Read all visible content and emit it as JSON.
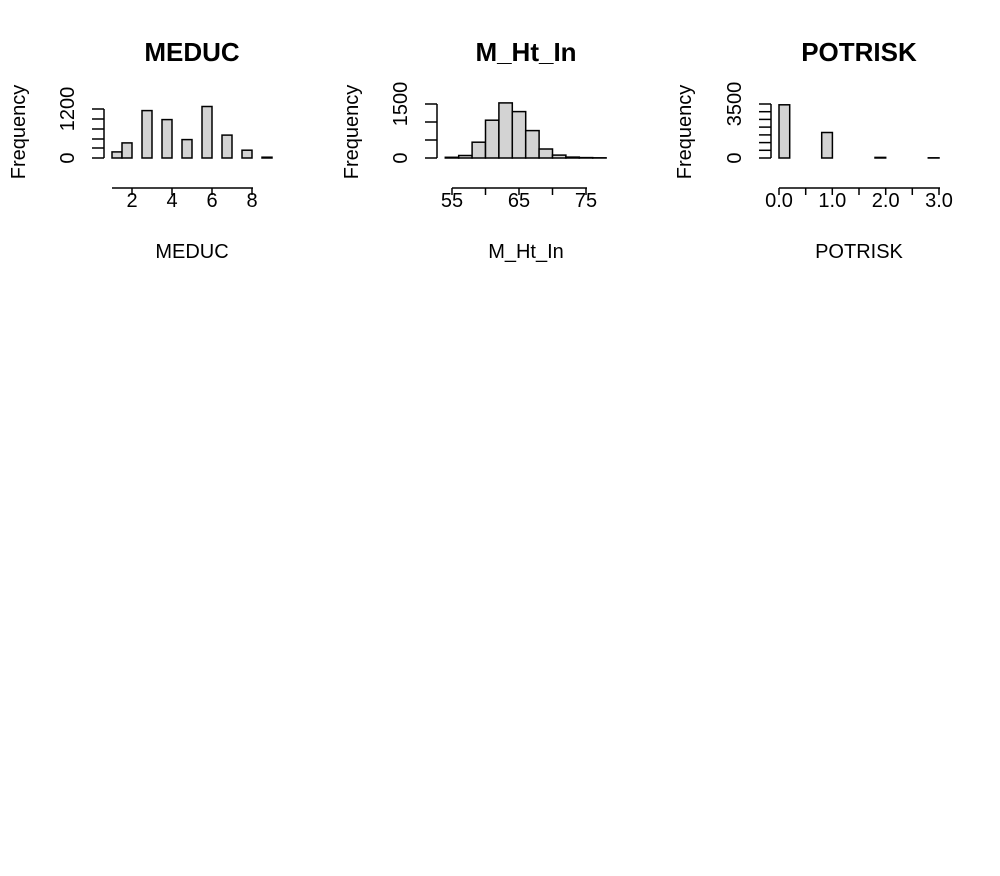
{
  "chart_data": [
    {
      "type": "bar",
      "title": "MEDUC",
      "xlabel": "MEDUC",
      "ylabel": "Frequency",
      "x_ticks": [
        "2",
        "4",
        "6",
        "8"
      ],
      "y_ticks": [
        "0",
        "1200"
      ],
      "bins": [
        [
          1.0,
          1.5
        ],
        [
          1.5,
          2.0
        ],
        [
          2.0,
          2.5
        ],
        [
          2.5,
          3.0
        ],
        [
          3.0,
          3.5
        ],
        [
          3.5,
          4.0
        ],
        [
          4.0,
          4.5
        ],
        [
          4.5,
          5.0
        ],
        [
          5.0,
          5.5
        ],
        [
          5.5,
          6.0
        ],
        [
          6.0,
          6.5
        ],
        [
          6.5,
          7.0
        ],
        [
          7.0,
          7.5
        ],
        [
          7.5,
          8.0
        ],
        [
          8.0,
          8.5
        ],
        [
          8.5,
          9.0
        ]
      ],
      "values": [
        150,
        370,
        0,
        1160,
        0,
        940,
        0,
        450,
        0,
        1260,
        0,
        560,
        0,
        190,
        0,
        20
      ],
      "ylim": [
        0,
        1300
      ]
    },
    {
      "type": "bar",
      "title": "M_Ht_In",
      "xlabel": "M_Ht_In",
      "ylabel": "Frequency",
      "x_ticks": [
        "55",
        "65",
        "75"
      ],
      "y_ticks": [
        "0",
        "1500"
      ],
      "bins": [
        [
          54,
          56
        ],
        [
          56,
          58
        ],
        [
          58,
          60
        ],
        [
          60,
          62
        ],
        [
          62,
          64
        ],
        [
          64,
          66
        ],
        [
          66,
          68
        ],
        [
          68,
          70
        ],
        [
          70,
          72
        ],
        [
          72,
          74
        ],
        [
          74,
          76
        ],
        [
          76,
          78
        ]
      ],
      "values": [
        20,
        70,
        440,
        1050,
        1530,
        1290,
        760,
        250,
        80,
        25,
        10,
        5
      ],
      "ylim": [
        0,
        1550
      ]
    },
    {
      "type": "bar",
      "title": "POTRISK",
      "xlabel": "POTRISK",
      "ylabel": "Frequency",
      "x_ticks": [
        "0.0",
        "1.0",
        "2.0",
        "3.0"
      ],
      "y_ticks": [
        "0",
        "3500"
      ],
      "bins": [
        [
          0.0,
          0.2
        ],
        [
          0.2,
          0.4
        ],
        [
          0.4,
          0.6
        ],
        [
          0.6,
          0.8
        ],
        [
          0.8,
          1.0
        ],
        [
          1.0,
          1.2
        ],
        [
          1.2,
          1.4
        ],
        [
          1.4,
          1.6
        ],
        [
          1.6,
          1.8
        ],
        [
          1.8,
          2.0
        ],
        [
          2.0,
          2.2
        ],
        [
          2.2,
          2.4
        ],
        [
          2.4,
          2.6
        ],
        [
          2.6,
          2.8
        ],
        [
          2.8,
          3.0
        ]
      ],
      "values": [
        3450,
        0,
        0,
        0,
        1650,
        0,
        0,
        0,
        0,
        40,
        0,
        0,
        0,
        0,
        10
      ],
      "ylim": [
        0,
        3500
      ]
    }
  ]
}
